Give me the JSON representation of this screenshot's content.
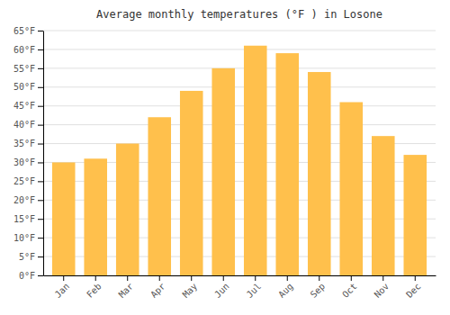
{
  "chart_data": {
    "type": "bar",
    "title": "Average monthly temperatures (°F ) in Losone",
    "categories": [
      "Jan",
      "Feb",
      "Mar",
      "Apr",
      "May",
      "Jun",
      "Jul",
      "Aug",
      "Sep",
      "Oct",
      "Nov",
      "Dec"
    ],
    "values": [
      30,
      31,
      35,
      42,
      49,
      55,
      61,
      59,
      54,
      46,
      37,
      32
    ],
    "color": "#FFC04C",
    "ylim": [
      0,
      65
    ],
    "yticks": [
      {
        "value": 0,
        "label": "0°F"
      },
      {
        "value": 5,
        "label": "5°F"
      },
      {
        "value": 10,
        "label": "10°F"
      },
      {
        "value": 15,
        "label": "15°F"
      },
      {
        "value": 20,
        "label": "20°F"
      },
      {
        "value": 25,
        "label": "25°F"
      },
      {
        "value": 30,
        "label": "30°F"
      },
      {
        "value": 35,
        "label": "35°F"
      },
      {
        "value": 40,
        "label": "40°F"
      },
      {
        "value": 45,
        "label": "45°F"
      },
      {
        "value": 50,
        "label": "50°F"
      },
      {
        "value": 55,
        "label": "55°F"
      },
      {
        "value": 60,
        "label": "60°F"
      },
      {
        "value": 65,
        "label": "65°F"
      }
    ],
    "grid": true
  }
}
